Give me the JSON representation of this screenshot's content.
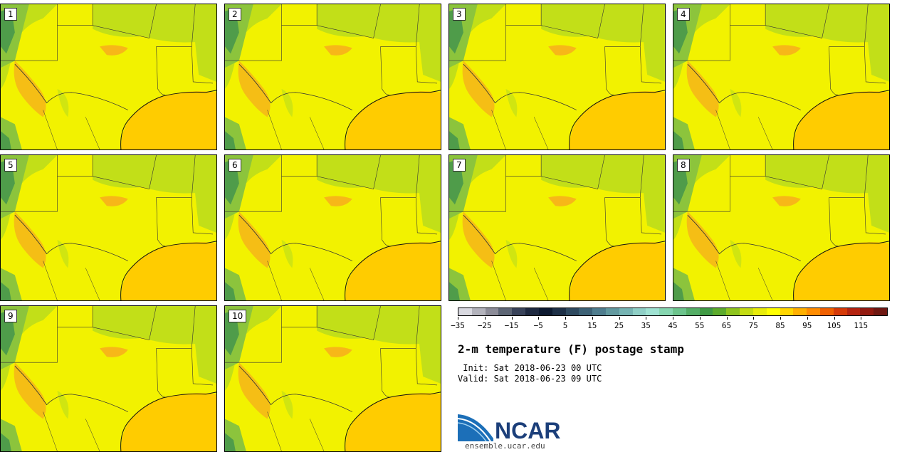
{
  "panels": [
    {
      "label": "1"
    },
    {
      "label": "2"
    },
    {
      "label": "3"
    },
    {
      "label": "4"
    },
    {
      "label": "5"
    },
    {
      "label": "6"
    },
    {
      "label": "7"
    },
    {
      "label": "8"
    },
    {
      "label": "9"
    },
    {
      "label": "10"
    }
  ],
  "colorbar": {
    "colors": [
      "#d9d9e0",
      "#b3b3bc",
      "#8c8c98",
      "#5e6675",
      "#39435a",
      "#1e2940",
      "#0d1a30",
      "#1e3047",
      "#2f4a60",
      "#3d6276",
      "#4f7d8e",
      "#62999f",
      "#76b4b3",
      "#8fcfc6",
      "#9fe2d2",
      "#86d6b0",
      "#6cc48c",
      "#54ae66",
      "#3f9a44",
      "#5cab2c",
      "#8ec41e",
      "#c4dc12",
      "#e8ec0a",
      "#ffff00",
      "#ffd600",
      "#ffb000",
      "#ff8c00",
      "#f06000",
      "#d63a08",
      "#b52410",
      "#931a10",
      "#701812"
    ],
    "tick_labels": [
      "−35",
      "−25",
      "−15",
      "−5",
      "5",
      "15",
      "25",
      "35",
      "45",
      "55",
      "65",
      "75",
      "85",
      "95",
      "105",
      "115"
    ]
  },
  "title": "2-m temperature (F) postage stamp",
  "init_line": " Init: Sat 2018-06-23 00 UTC",
  "valid_line": "Valid: Sat 2018-06-23 09 UTC",
  "logo": {
    "wordmark": "NCAR",
    "url": "ensemble.ucar.edu",
    "color": "#1c3f7a",
    "swoosh": "#3a8dd0"
  },
  "map_colors": {
    "land": "#f2f200",
    "warm": "#ffd200",
    "hot": "#f7a81e",
    "cool": "#c2df18",
    "green": "#8cc43c",
    "dark_green": "#4f9c4a",
    "gulf": "#ffcc00",
    "border": "#333333"
  }
}
